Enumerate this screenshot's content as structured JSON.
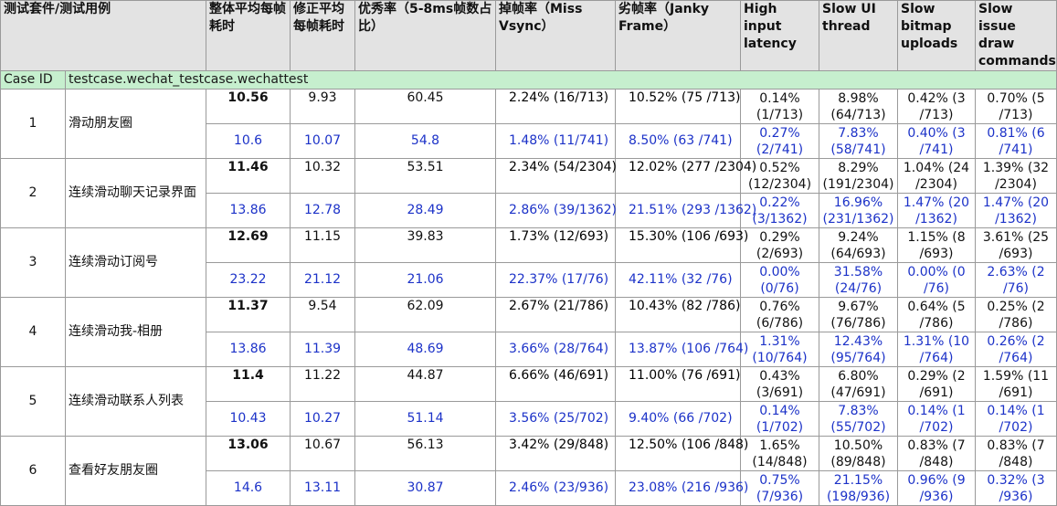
{
  "headers": [
    "测试套件/测试用例",
    "整体平均每帧耗时",
    "修正平均每帧耗时",
    "优秀率（5-8ms帧数占比）",
    "掉帧率（Miss Vsync）",
    "劣帧率（Janky Frame）",
    "High input latency",
    "Slow UI thread",
    "Slow bitmap uploads",
    "Slow issue draw commands"
  ],
  "case_row": {
    "label": "Case ID",
    "value": "testcase.wechat_testcase.wechattest"
  },
  "rows": [
    {
      "id": "1",
      "name": "滑动朋友圈",
      "a": [
        "10.56",
        "9.93",
        "60.45",
        "2.24% (16/713)",
        "10.52% (75 /713)",
        "0.14% (1/713)",
        "8.98% (64/713)",
        "0.42% (3 /713)",
        "0.70% (5 /713)"
      ],
      "b": [
        "10.6",
        "10.07",
        "54.8",
        "1.48% (11/741)",
        "8.50% (63 /741)",
        "0.27% (2/741)",
        "7.83% (58/741)",
        "0.40% (3 /741)",
        "0.81% (6 /741)"
      ]
    },
    {
      "id": "2",
      "name": "连续滑动聊天记录界面",
      "a": [
        "11.46",
        "10.32",
        "53.51",
        "2.34% (54/2304)",
        "12.02% (277 /2304)",
        "0.52% (12/2304)",
        "8.29% (191/2304)",
        "1.04% (24 /2304)",
        "1.39% (32 /2304)"
      ],
      "b": [
        "13.86",
        "12.78",
        "28.49",
        "2.86% (39/1362)",
        "21.51% (293 /1362)",
        "0.22% (3/1362)",
        "16.96% (231/1362)",
        "1.47% (20 /1362)",
        "1.47% (20 /1362)"
      ]
    },
    {
      "id": "3",
      "name": "连续滑动订阅号",
      "a": [
        "12.69",
        "11.15",
        "39.83",
        "1.73% (12/693)",
        "15.30% (106 /693)",
        "0.29% (2/693)",
        "9.24% (64/693)",
        "1.15% (8 /693)",
        "3.61% (25 /693)"
      ],
      "b": [
        "23.22",
        "21.12",
        "21.06",
        "22.37% (17/76)",
        "42.11% (32 /76)",
        "0.00% (0/76)",
        "31.58% (24/76)",
        "0.00% (0 /76)",
        "2.63% (2 /76)"
      ]
    },
    {
      "id": "4",
      "name": "连续滑动我-相册",
      "a": [
        "11.37",
        "9.54",
        "62.09",
        "2.67% (21/786)",
        "10.43% (82 /786)",
        "0.76% (6/786)",
        "9.67% (76/786)",
        "0.64% (5 /786)",
        "0.25% (2 /786)"
      ],
      "b": [
        "13.86",
        "11.39",
        "48.69",
        "3.66% (28/764)",
        "13.87% (106 /764)",
        "1.31% (10/764)",
        "12.43% (95/764)",
        "1.31% (10 /764)",
        "0.26% (2 /764)"
      ]
    },
    {
      "id": "5",
      "name": "连续滑动联系人列表",
      "a": [
        "11.4",
        "11.22",
        "44.87",
        "6.66% (46/691)",
        "11.00% (76 /691)",
        "0.43% (3/691)",
        "6.80% (47/691)",
        "0.29% (2 /691)",
        "1.59% (11 /691)"
      ],
      "b": [
        "10.43",
        "10.27",
        "51.14",
        "3.56% (25/702)",
        "9.40% (66 /702)",
        "0.14% (1/702)",
        "7.83% (55/702)",
        "0.14% (1 /702)",
        "0.14% (1 /702)"
      ]
    },
    {
      "id": "6",
      "name": "查看好友朋友圈",
      "a": [
        "13.06",
        "10.67",
        "56.13",
        "3.42% (29/848)",
        "12.50% (106 /848)",
        "1.65% (14/848)",
        "10.50% (89/848)",
        "0.83% (7 /848)",
        "0.83% (7 /848)"
      ],
      "b": [
        "14.6",
        "13.11",
        "30.87",
        "2.46% (23/936)",
        "23.08% (216 /936)",
        "0.75% (7/936)",
        "21.15% (198/936)",
        "0.96% (9 /936)",
        "0.32% (3 /936)"
      ]
    }
  ],
  "colors": {
    "header_bg": "#e3e3e3",
    "case_row_bg": "#c6efce",
    "second_row_text": "#1c32c8",
    "grid_line": "#9a9a9a"
  }
}
